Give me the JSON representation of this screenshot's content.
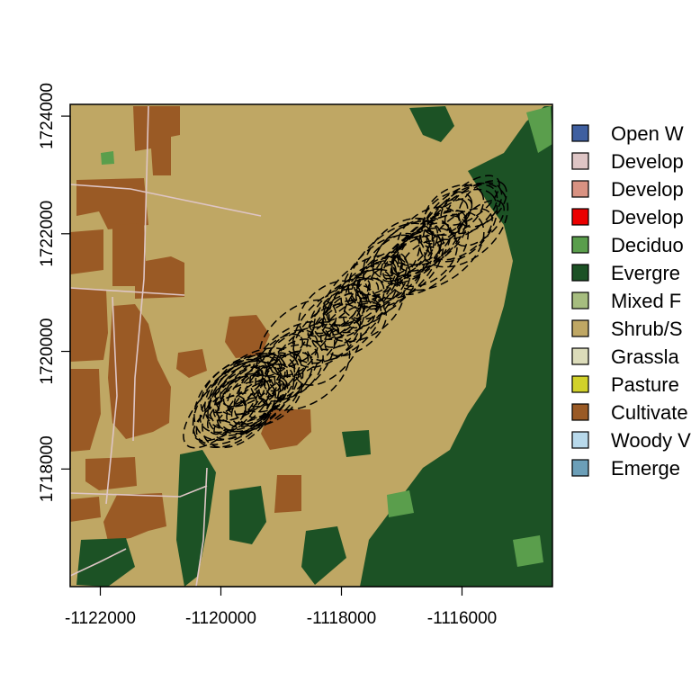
{
  "chart_data": {
    "type": "map",
    "title": "",
    "xlabel": "",
    "ylabel": "",
    "xlim": [
      -1122500,
      -1114500
    ],
    "ylim": [
      1716000,
      1724200
    ],
    "x_ticks": [
      -1122000,
      -1120000,
      -1118000,
      -1116000
    ],
    "x_tick_labels": [
      "-1122000",
      "-1120000",
      "-1118000",
      "-1116000"
    ],
    "y_ticks": [
      1718000,
      1720000,
      1722000,
      1724000
    ],
    "y_tick_labels": [
      "1718000",
      "1720000",
      "1722000",
      "1724000"
    ],
    "background_class": "Shrub/Scrub",
    "legend": {
      "placement": "right",
      "entries": [
        {
          "label": "Open W",
          "color": "#3f5fa0"
        },
        {
          "label": "Develop",
          "color": "#dec5c5"
        },
        {
          "label": "Develop",
          "color": "#d99282"
        },
        {
          "label": "Develop",
          "color": "#eb0000"
        },
        {
          "label": "Deciduo",
          "color": "#5a9e4c"
        },
        {
          "label": "Evergre",
          "color": "#1c5225"
        },
        {
          "label": "Mixed F",
          "color": "#a6bd7f"
        },
        {
          "label": "Shrub/S",
          "color": "#bfa764"
        },
        {
          "label": "Grassla",
          "color": "#dcdcba"
        },
        {
          "label": "Pasture",
          "color": "#d1d12a"
        },
        {
          "label": "Cultivate",
          "color": "#9a5a25"
        },
        {
          "label": "Woody V",
          "color": "#b8d9eb"
        },
        {
          "label": "Emerge",
          "color": "#6c9fb8"
        }
      ]
    },
    "overlay": {
      "type": "dashed ellipse contours",
      "color": "#000000",
      "center_line": [
        [
          -1119900,
          1718900
        ],
        [
          -1115700,
          1722500
        ]
      ],
      "ellipse_radii_xy": [
        700,
        420
      ]
    }
  }
}
